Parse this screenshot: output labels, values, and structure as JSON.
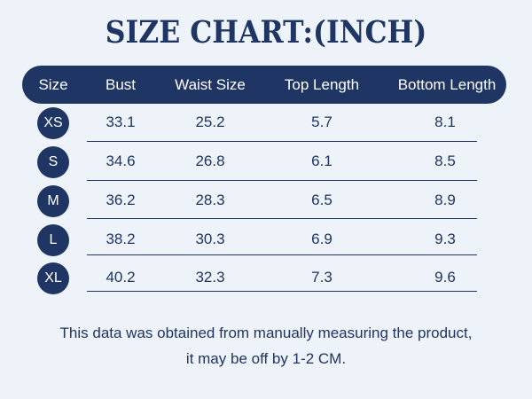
{
  "title": "SIZE CHART:(INCH)",
  "headers": [
    "Size",
    "Bust",
    "Waist Size",
    "Top Length",
    "Bottom Length"
  ],
  "rows": [
    {
      "size": "XS",
      "bust": "33.1",
      "waist": "25.2",
      "top": "5.7",
      "bottom": "8.1"
    },
    {
      "size": "S",
      "bust": "34.6",
      "waist": "26.8",
      "top": "6.1",
      "bottom": "8.5"
    },
    {
      "size": "M",
      "bust": "36.2",
      "waist": "28.3",
      "top": "6.5",
      "bottom": "8.9"
    },
    {
      "size": "L",
      "bust": "38.2",
      "waist": "30.3",
      "top": "6.9",
      "bottom": "9.3"
    },
    {
      "size": "XL",
      "bust": "40.2",
      "waist": "32.3",
      "top": "7.3",
      "bottom": "9.6"
    }
  ],
  "note": {
    "line1": "This data was obtained from manually measuring the product,",
    "line2": "it may be off by 1-2 CM."
  },
  "colors": {
    "background": "#eef2f9",
    "primary": "#1f3563"
  }
}
